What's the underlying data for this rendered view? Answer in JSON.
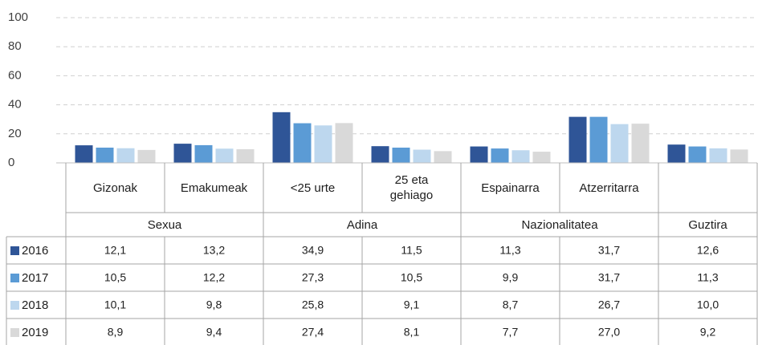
{
  "chart_data": {
    "type": "bar",
    "categories": [
      "Gizonak",
      "Emakumeak",
      "<25 urte",
      "25 eta gehiago",
      "Espainarra",
      "Atzerritarra",
      null
    ],
    "groups": [
      "Sexua",
      "Sexua",
      "Adina",
      "Adina",
      "Nazionalitatea",
      "Nazionalitatea",
      "Guztira"
    ],
    "series": [
      {
        "name": "2016",
        "color": "#2f5597",
        "values": [
          12.1,
          13.2,
          34.9,
          11.5,
          11.3,
          31.7,
          12.6
        ],
        "value_labels": [
          "12,1",
          "13,2",
          "34,9",
          "11,5",
          "11,3",
          "31,7",
          "12,6"
        ]
      },
      {
        "name": "2017",
        "color": "#5b9bd5",
        "values": [
          10.5,
          12.2,
          27.3,
          10.5,
          9.9,
          31.7,
          11.3
        ],
        "value_labels": [
          "10,5",
          "12,2",
          "27,3",
          "10,5",
          "9,9",
          "31,7",
          "11,3"
        ]
      },
      {
        "name": "2018",
        "color": "#bdd7ee",
        "values": [
          10.1,
          9.8,
          25.8,
          9.1,
          8.7,
          26.7,
          10.0
        ],
        "value_labels": [
          "10,1",
          "9,8",
          "25,8",
          "9,1",
          "8,7",
          "26,7",
          "10,0"
        ]
      },
      {
        "name": "2019",
        "color": "#d9d9d9",
        "values": [
          8.9,
          9.4,
          27.4,
          8.1,
          7.7,
          27.0,
          9.2
        ],
        "value_labels": [
          "8,9",
          "9,4",
          "27,4",
          "8,1",
          "7,7",
          "27,0",
          "9,2"
        ]
      }
    ],
    "ylim": [
      0,
      100
    ],
    "yticks": [
      0,
      20,
      40,
      60,
      80,
      100
    ],
    "grid": true
  }
}
